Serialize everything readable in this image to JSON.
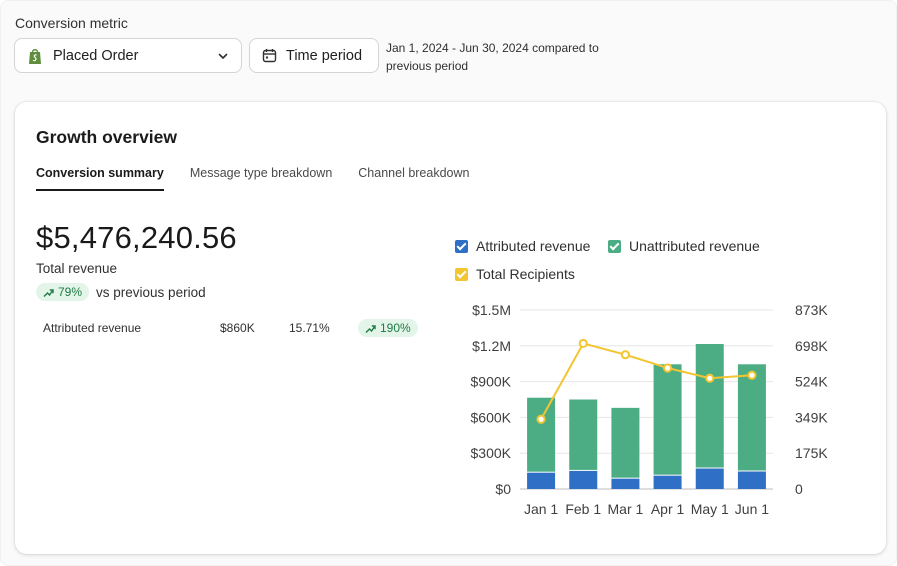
{
  "filters": {
    "metric_label": "Conversion metric",
    "metric_value": "Placed Order",
    "time_button": "Time period",
    "date_range": "Jan 1, 2024 - Jun 30, 2024 compared to previous period"
  },
  "card": {
    "title": "Growth overview",
    "tabs": [
      "Conversion summary",
      "Message type breakdown",
      "Channel breakdown"
    ],
    "total_value": "$5,476,240.56",
    "total_label": "Total revenue",
    "growth_pct": "79%",
    "growth_suffix": "vs previous period",
    "attributed": {
      "label": "Attributed revenue",
      "amount": "$860K",
      "share": "15.71%",
      "change": "190%"
    }
  },
  "legend": {
    "attributed": "Attributed revenue",
    "unattributed": "Unattributed revenue",
    "recipients": "Total Recipients"
  },
  "colors": {
    "attributed": "#2f6fc6",
    "unattributed": "#4cad84",
    "recipients": "#f2c531",
    "pill_bg": "#e3f5e9",
    "pill_text": "#1f7a45"
  },
  "chart_data": {
    "type": "bar",
    "categories": [
      "Jan 1",
      "Feb 1",
      "Mar 1",
      "Apr 1",
      "May 1",
      "Jun 1"
    ],
    "series": [
      {
        "name": "Attributed revenue",
        "axis": "left",
        "values": [
          145000,
          160000,
          95000,
          120000,
          180000,
          155000
        ]
      },
      {
        "name": "Unattributed revenue",
        "axis": "left",
        "values": [
          620000,
          590000,
          585000,
          925000,
          1035000,
          890000
        ]
      },
      {
        "name": "Total Recipients",
        "type": "line",
        "axis": "right",
        "values": [
          340000,
          710000,
          655000,
          590000,
          540000,
          555000
        ]
      }
    ],
    "y_left": {
      "min": 0,
      "max": 1500000,
      "ticks": [
        "$0",
        "$300K",
        "$600K",
        "$900K",
        "$1.2M",
        "$1.5M"
      ]
    },
    "y_right": {
      "min": 0,
      "max": 873000,
      "ticks": [
        "0",
        "175K",
        "349K",
        "524K",
        "698K",
        "873K"
      ]
    },
    "stacked": true,
    "grid": true
  }
}
